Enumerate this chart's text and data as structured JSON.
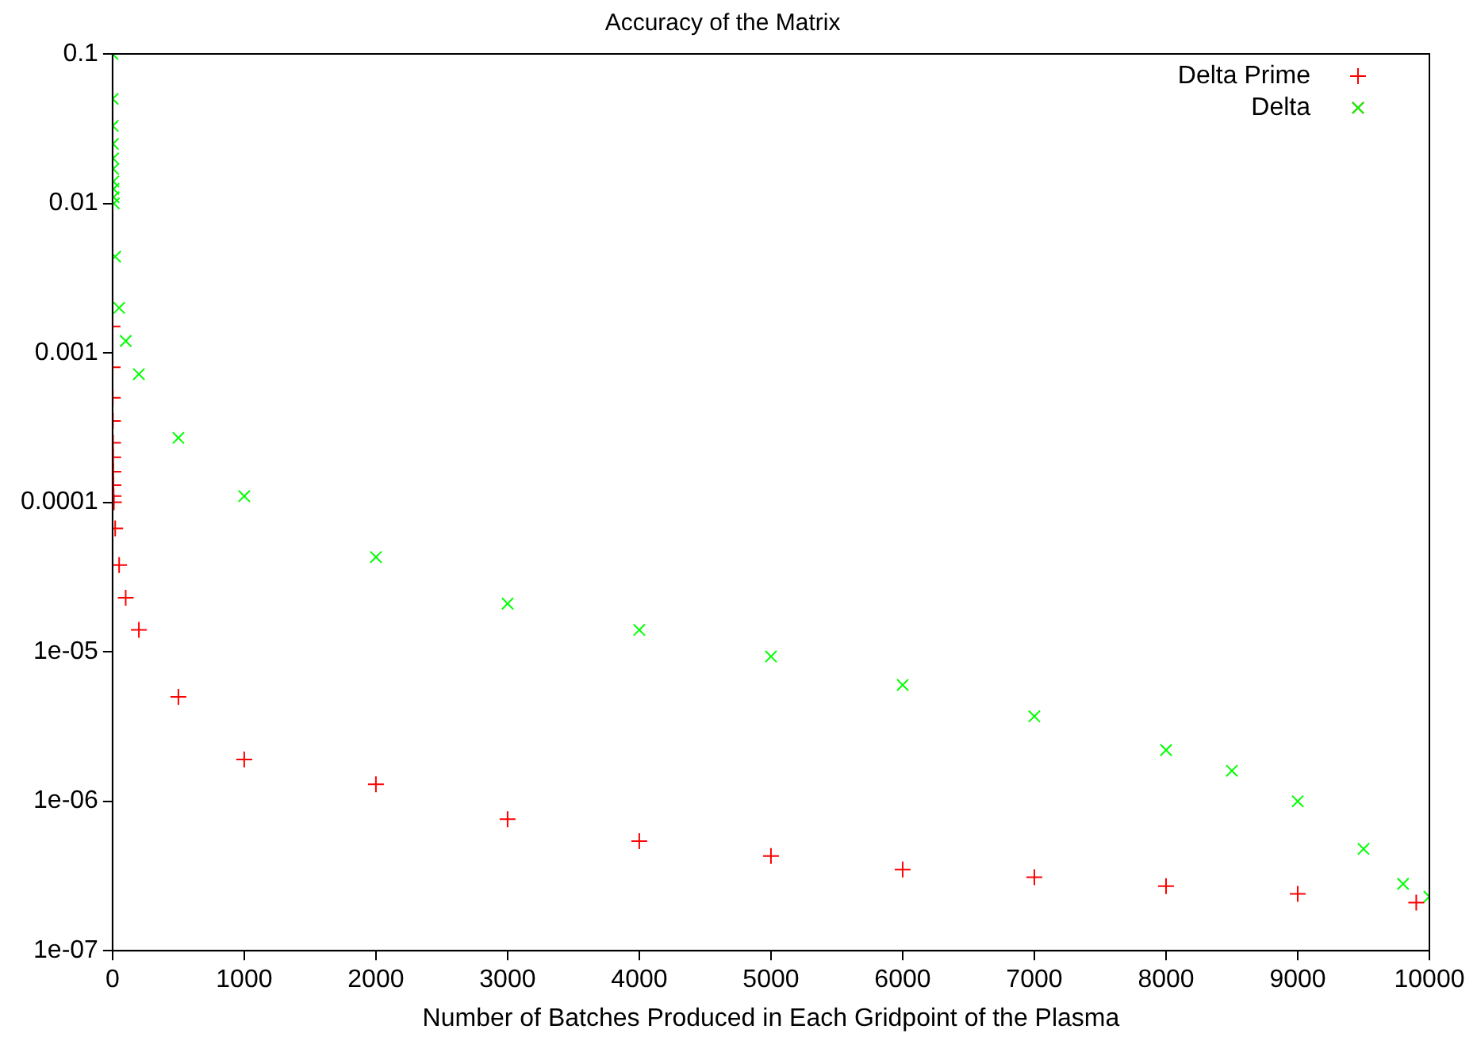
{
  "chart_data": {
    "type": "scatter",
    "title": "Accuracy of the Matrix",
    "xlabel": "Number of Batches Produced in Each Gridpoint of the Plasma",
    "log": "y",
    "grid": false,
    "legend": "top right",
    "xlim": [
      0,
      10000
    ],
    "xticks": [
      0,
      1000,
      2000,
      3000,
      4000,
      5000,
      6000,
      7000,
      8000,
      9000,
      10000
    ],
    "ylim": [
      1e-07,
      0.1
    ],
    "yticks": [
      {
        "value": 1e-07,
        "label": "1e-07"
      },
      {
        "value": 1e-06,
        "label": "1e-06"
      },
      {
        "value": 1e-05,
        "label": "1e-05"
      },
      {
        "value": 0.0001,
        "label": "0.0001"
      },
      {
        "value": 0.001,
        "label": "0.001"
      },
      {
        "value": 0.01,
        "label": "0.01"
      },
      {
        "value": 0.1,
        "label": "0.1"
      }
    ],
    "series": [
      {
        "name": "Delta Prime",
        "color": "#ff0000",
        "marker": "plus",
        "x": [
          0,
          1,
          2,
          3,
          4,
          5,
          6,
          7,
          8,
          10,
          20,
          50,
          100,
          200,
          500,
          1000,
          2000,
          3000,
          4000,
          5000,
          6000,
          7000,
          8000,
          9000,
          9900
        ],
        "values": [
          0.0015,
          0.0008,
          0.0005,
          0.00035,
          0.00025,
          0.0002,
          0.00016,
          0.00013,
          0.00011,
          0.0001,
          6.7e-05,
          3.8e-05,
          2.3e-05,
          1.4e-05,
          5e-06,
          1.9e-06,
          1.3e-06,
          7.6e-07,
          5.4e-07,
          4.3e-07,
          3.5e-07,
          3.1e-07,
          2.7e-07,
          2.4e-07,
          2.1e-07
        ]
      },
      {
        "name": "Delta",
        "color": "#00ff00",
        "marker": "cross",
        "x": [
          0,
          1,
          2,
          3,
          4,
          5,
          6,
          7,
          8,
          10,
          20,
          50,
          100,
          200,
          500,
          1000,
          2000,
          3000,
          4000,
          5000,
          6000,
          7000,
          8000,
          8500,
          9000,
          9500,
          9800,
          10000
        ],
        "values": [
          0.1,
          0.05,
          0.033,
          0.025,
          0.02,
          0.017,
          0.014,
          0.0125,
          0.011,
          0.01,
          0.0044,
          0.002,
          0.0012,
          0.00072,
          0.00027,
          0.00011,
          4.3e-05,
          2.1e-05,
          1.4e-05,
          9.3e-06,
          6e-06,
          3.7e-06,
          2.2e-06,
          1.6e-06,
          1e-06,
          4.8e-07,
          2.8e-07,
          2.3e-07
        ]
      }
    ]
  }
}
